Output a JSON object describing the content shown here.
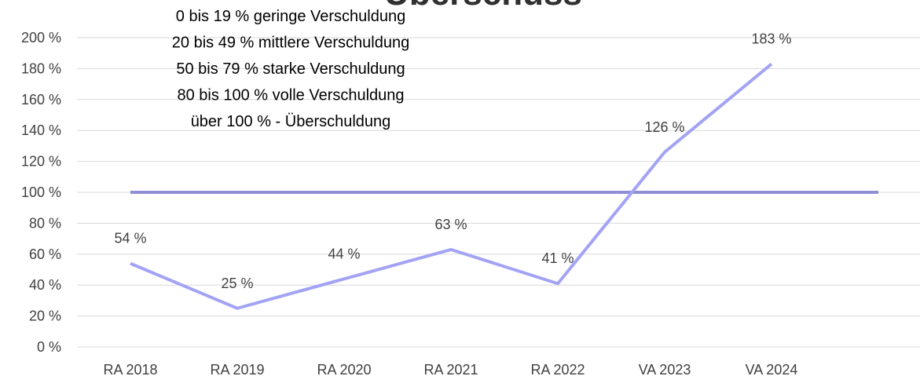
{
  "chart_data": {
    "type": "line",
    "title": "Überschuss",
    "annotations": [
      "0 bis 19 % geringe Verschuldung",
      "20 bis 49 % mittlere Verschuldung",
      "50 bis 79 % starke Verschuldung",
      "80 bis 100 % volle Verschuldung",
      "über 100 % - Überschuldung"
    ],
    "categories": [
      "RA 2018",
      "RA 2019",
      "RA 2020",
      "RA 2021",
      "RA 2022",
      "VA 2023",
      "VA 2024",
      null
    ],
    "series": [
      {
        "color": "#8f8fd6",
        "values": [
          100,
          100,
          100,
          100,
          100,
          100,
          100,
          100
        ]
      },
      {
        "color": "#a3a3f5",
        "values": [
          54,
          25,
          44,
          63,
          41,
          126,
          183,
          null
        ],
        "value_labels": [
          "54 %",
          "25 %",
          "44 %",
          "63 %",
          "41 %",
          "126 %",
          "183 %",
          null
        ]
      }
    ],
    "ylim": [
      0,
      200
    ],
    "yticks": [
      {
        "value": 0,
        "label": "0 %"
      },
      {
        "value": 20,
        "label": "20 %"
      },
      {
        "value": 40,
        "label": "40 %"
      },
      {
        "value": 60,
        "label": "60 %"
      },
      {
        "value": 80,
        "label": "80 %"
      },
      {
        "value": 100,
        "label": "100 %"
      },
      {
        "value": 120,
        "label": "120 %"
      },
      {
        "value": 140,
        "label": "140 %"
      },
      {
        "value": 160,
        "label": "160 %"
      },
      {
        "value": 180,
        "label": "180 %"
      },
      {
        "value": 200,
        "label": "200 %"
      }
    ],
    "grid": true
  }
}
